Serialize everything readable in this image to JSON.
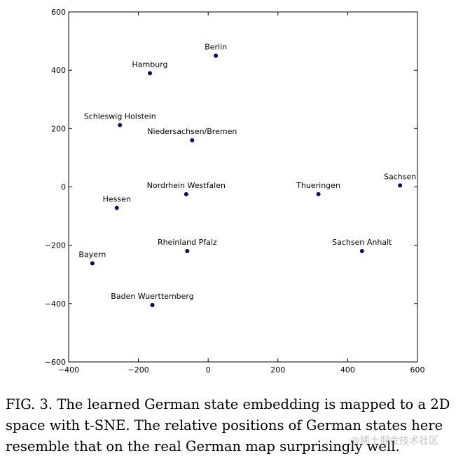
{
  "chart_data": {
    "type": "scatter",
    "title": "",
    "xlabel": "",
    "ylabel": "",
    "xlim": [
      -400,
      600
    ],
    "ylim": [
      -600,
      600
    ],
    "x_ticks": [
      -400,
      -200,
      0,
      200,
      400,
      600
    ],
    "y_ticks": [
      -600,
      -400,
      -200,
      0,
      200,
      400,
      600
    ],
    "grid": false,
    "marker_color": "#0b0b5e",
    "points": [
      {
        "label": "Berlin",
        "x": 22,
        "y": 450
      },
      {
        "label": "Hamburg",
        "x": -167,
        "y": 390
      },
      {
        "label": "Schleswig Holstein",
        "x": -253,
        "y": 212
      },
      {
        "label": "Niedersachsen/Bremen",
        "x": -46,
        "y": 160
      },
      {
        "label": "Nordrhein Westfalen",
        "x": -63,
        "y": -25
      },
      {
        "label": "Thueringen",
        "x": 316,
        "y": -25
      },
      {
        "label": "Sachsen",
        "x": 550,
        "y": 5
      },
      {
        "label": "Hessen",
        "x": -262,
        "y": -72
      },
      {
        "label": "Rheinland Pfalz",
        "x": -60,
        "y": -220
      },
      {
        "label": "Sachsen Anhalt",
        "x": 441,
        "y": -220
      },
      {
        "label": "Bayern",
        "x": -332,
        "y": -262
      },
      {
        "label": "Baden Wuerttemberg",
        "x": -160,
        "y": -405
      }
    ]
  },
  "caption": "FIG. 3. The learned German state embedding is mapped to a 2D space with t-SNE. The relative positions of German states here resemble that on the real German map surprisingly well.",
  "watermark": "@稀土掘金技术社区"
}
